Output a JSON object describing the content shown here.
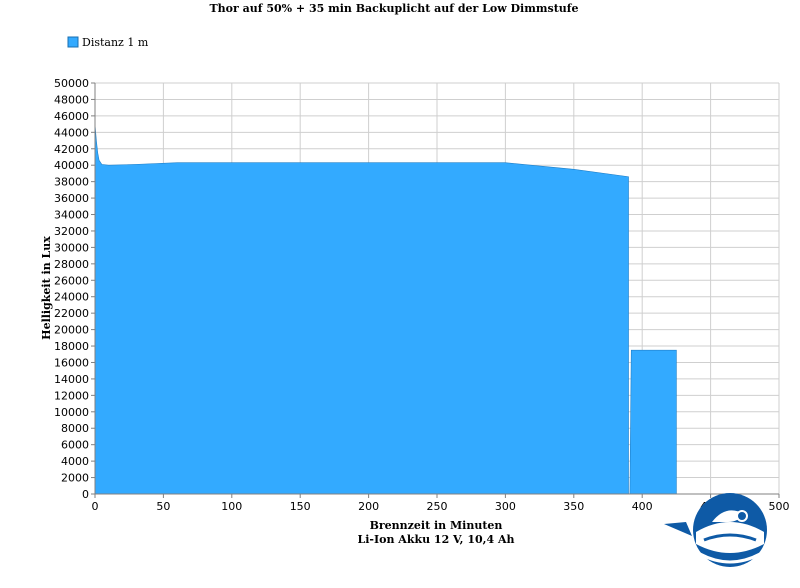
{
  "chart_data": {
    "type": "area",
    "title": "Thor auf 50% + 35 min Backuplicht auf der Low Dimmstufe",
    "xlabel": "Brennzeit in Minuten",
    "xlabel2": "Li-Ion Akku 12 V, 10,4 Ah",
    "ylabel": "Helligkeit in Lux",
    "xlim": [
      0,
      500
    ],
    "ylim": [
      0,
      50000
    ],
    "x_ticks": [
      0,
      50,
      100,
      150,
      200,
      250,
      300,
      350,
      400,
      450,
      500
    ],
    "y_ticks": [
      0,
      2000,
      4000,
      6000,
      8000,
      10000,
      12000,
      14000,
      16000,
      18000,
      20000,
      22000,
      24000,
      26000,
      28000,
      30000,
      32000,
      34000,
      36000,
      38000,
      40000,
      42000,
      44000,
      46000,
      48000,
      50000
    ],
    "grid": true,
    "legend_position": "top-left",
    "series": [
      {
        "name": "Distanz 1 m",
        "color": "#33aaff",
        "points": [
          [
            0,
            45000
          ],
          [
            1,
            43000
          ],
          [
            2,
            41500
          ],
          [
            3,
            40600
          ],
          [
            5,
            40100
          ],
          [
            10,
            40000
          ],
          [
            30,
            40100
          ],
          [
            60,
            40300
          ],
          [
            150,
            40300
          ],
          [
            250,
            40300
          ],
          [
            300,
            40300
          ],
          [
            350,
            39500
          ],
          [
            390,
            38600
          ],
          [
            390,
            0
          ]
        ]
      },
      {
        "name": "Distanz 1 m",
        "color": "#33aaff",
        "points": [
          [
            391,
            0
          ],
          [
            392,
            17500
          ],
          [
            425,
            17500
          ],
          [
            425,
            0
          ]
        ]
      }
    ]
  },
  "logo": {
    "name": "diving-logo"
  }
}
